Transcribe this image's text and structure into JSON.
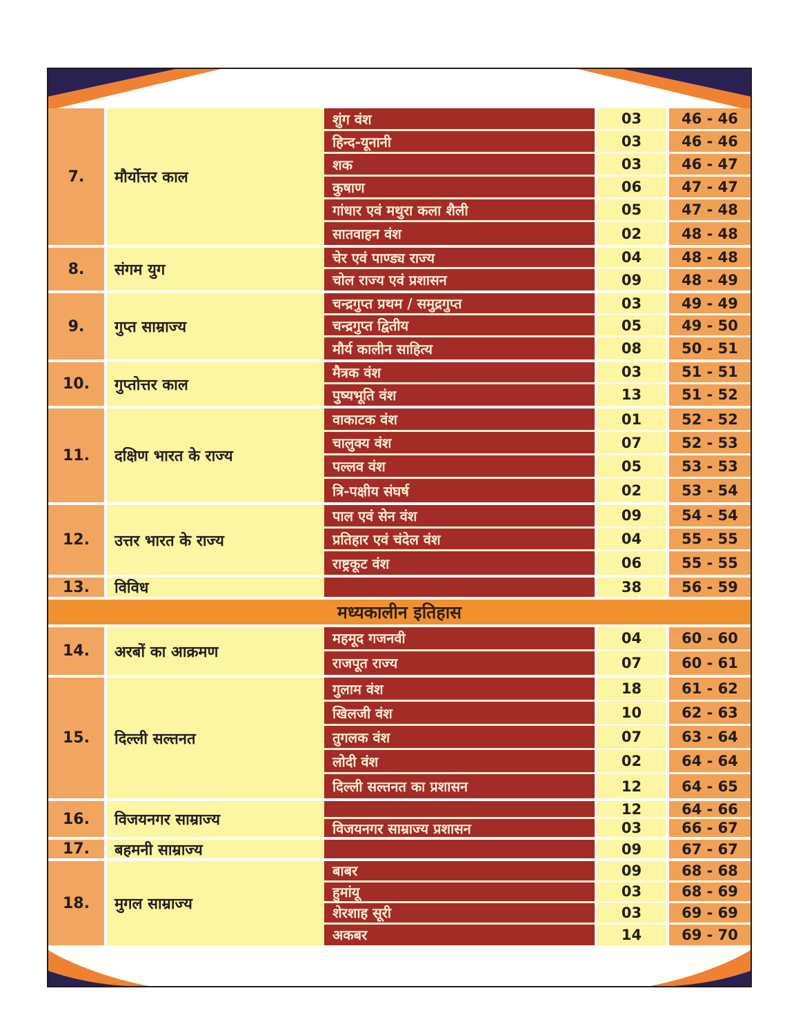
{
  "page_type": "book-table-of-contents",
  "colors": {
    "maroon": "#A32C26",
    "yellow": "#FCF5A1",
    "serial_column_orange": "#F2A55E",
    "pages_column_orange": "#F1A156",
    "band_orange": "#F0912F",
    "corner_navy": "#2A2052",
    "corner_orange": "#EF8230",
    "text_dark": "#231D1E",
    "subtopic_text": "#F8EDD5"
  },
  "toc": {
    "ancient_sections": [
      {
        "no": "7.",
        "topic": "मौर्योत्तर काल",
        "rows": [
          {
            "sub": "शुंग वंश",
            "count": "03",
            "pages": "46 - 46"
          },
          {
            "sub": "हिन्द-यूनानी",
            "count": "03",
            "pages": "46 - 46"
          },
          {
            "sub": "शक",
            "count": "03",
            "pages": "46 - 47"
          },
          {
            "sub": "कुषाण",
            "count": "06",
            "pages": "47 - 47"
          },
          {
            "sub": "गांधार एवं मथुरा कला शैली",
            "count": "05",
            "pages": "47 - 48"
          },
          {
            "sub": "सातवाहन वंश",
            "count": "02",
            "pages": "48 - 48"
          }
        ]
      },
      {
        "no": "8.",
        "topic": "संगम युग",
        "rows": [
          {
            "sub": "चेर एवं पाण्ड्य  राज्य",
            "count": "04",
            "pages": "48 - 48"
          },
          {
            "sub": "चोल राज्य एवं प्रशासन",
            "count": "09",
            "pages": "48 - 49"
          }
        ]
      },
      {
        "no": "9.",
        "topic": "गुप्त साम्राज्य",
        "rows": [
          {
            "sub": "चन्द्रगुप्त प्रथम / समुद्रगुप्त",
            "count": "03",
            "pages": "49 - 49"
          },
          {
            "sub": "चन्द्रगुप्त द्वितीय",
            "count": "05",
            "pages": "49 - 50"
          },
          {
            "sub": "मौर्य कालीन साहित्य",
            "count": "08",
            "pages": "50 - 51"
          }
        ]
      },
      {
        "no": "10.",
        "topic": "गुप्तोत्तर काल",
        "rows": [
          {
            "sub": "मैत्रक वंश",
            "count": "03",
            "pages": "51 - 51"
          },
          {
            "sub": "पुष्यभूति वंश",
            "count": "13",
            "pages": "51 - 52"
          }
        ]
      },
      {
        "no": "11.",
        "topic": "दक्षिण भारत के राज्य",
        "rows": [
          {
            "sub": "वाकाटक वंश",
            "count": "01",
            "pages": "52 - 52"
          },
          {
            "sub": "चालुक्य वंश",
            "count": "07",
            "pages": "52 - 53"
          },
          {
            "sub": "पल्लव वंश",
            "count": "05",
            "pages": "53 - 53"
          },
          {
            "sub": "त्रि-पक्षीय संघर्ष",
            "count": "02",
            "pages": "53 - 54"
          }
        ]
      },
      {
        "no": "12.",
        "topic": "उत्तर भारत के राज्य",
        "rows": [
          {
            "sub": "पाल एवं सेन वंश",
            "count": "09",
            "pages": "54 - 54"
          },
          {
            "sub": "प्रतिहार एवं चंदेल वंश",
            "count": "04",
            "pages": "55 - 55"
          },
          {
            "sub": "राष्ट्रकूट वंश",
            "count": "06",
            "pages": "55 - 55"
          }
        ]
      },
      {
        "no": "13.",
        "topic": "विविध",
        "rows": [
          {
            "sub": "",
            "count": "38",
            "pages": "56 - 59"
          }
        ]
      }
    ],
    "medieval_band": "मध्यकालीन इतिहास",
    "medieval_sections": [
      {
        "no": "14.",
        "topic": "अरबों का आक्रमण",
        "rows": [
          {
            "sub": "महमूद गजनवी",
            "count": "04",
            "pages": "60 - 60"
          },
          {
            "sub": "राजपूत राज्य",
            "count": "07",
            "pages": "60 - 61"
          }
        ]
      },
      {
        "no": "15.",
        "topic": "दिल्ली सल्तनत",
        "rows": [
          {
            "sub": "गुलाम वंश",
            "count": "18",
            "pages": "61 - 62"
          },
          {
            "sub": "खिलजी वंश",
            "count": "10",
            "pages": "62 - 63"
          },
          {
            "sub": "तुगलक वंश",
            "count": "07",
            "pages": "63 - 64"
          },
          {
            "sub": "लोदी वंश",
            "count": "02",
            "pages": "64 - 64"
          },
          {
            "sub": "दिल्ली सल्तनत का प्रशासन",
            "count": "12",
            "pages": "64 - 65"
          }
        ]
      },
      {
        "no": "16.",
        "topic": "विजयनगर साम्राज्य",
        "rows": [
          {
            "sub": "",
            "count": "12",
            "pages": "64 - 66"
          },
          {
            "sub": "विजयनगर साम्राज्य प्रशासन",
            "count": "03",
            "pages": "66 - 67"
          }
        ]
      },
      {
        "no": "17.",
        "topic": "बहमनी साम्राज्य",
        "rows": [
          {
            "sub": "",
            "count": "09",
            "pages": "67 - 67"
          }
        ]
      },
      {
        "no": "18.",
        "topic": "मुगल साम्राज्य",
        "rows": [
          {
            "sub": "बाबर",
            "count": "09",
            "pages": "68 - 68"
          },
          {
            "sub": "हुमांयू",
            "count": "03",
            "pages": "68 - 69"
          },
          {
            "sub": "शेरशाह सूरी",
            "count": "03",
            "pages": "69 - 69"
          },
          {
            "sub": "अकबर",
            "count": "14",
            "pages": "69 - 70"
          }
        ]
      }
    ]
  }
}
